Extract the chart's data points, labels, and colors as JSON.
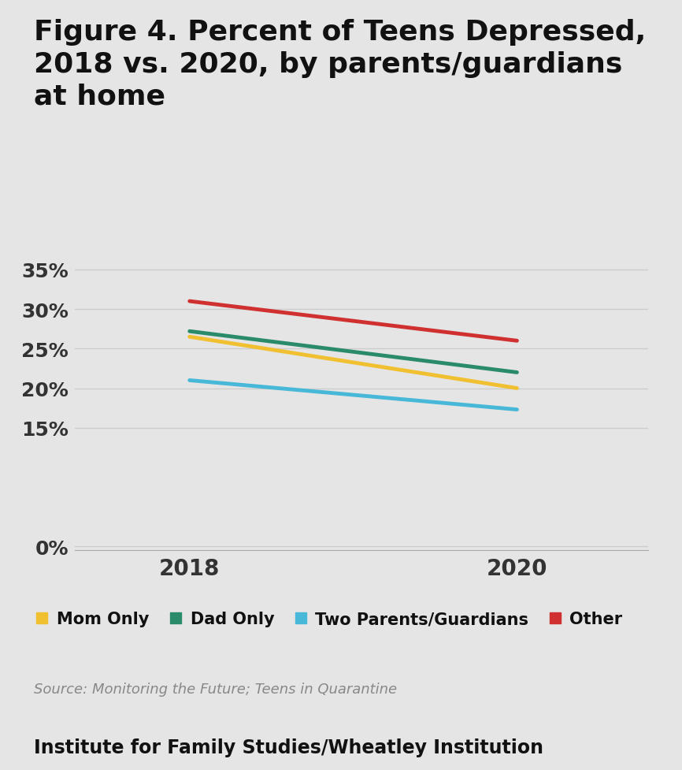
{
  "title": "Figure 4. Percent of Teens Depressed,\n2018 vs. 2020, by parents/guardians\nat home",
  "title_fontsize": 26,
  "title_fontweight": "bold",
  "background_color": "#e5e5e5",
  "years": [
    2018,
    2020
  ],
  "series": [
    {
      "label": "Mom Only",
      "values": [
        0.265,
        0.2
      ],
      "color": "#f0c030",
      "linewidth": 3.5
    },
    {
      "label": "Dad Only",
      "values": [
        0.272,
        0.22
      ],
      "color": "#2a8b6a",
      "linewidth": 3.5
    },
    {
      "label": "Two Parents/Guardians",
      "values": [
        0.21,
        0.173
      ],
      "color": "#48b8d8",
      "linewidth": 3.5
    },
    {
      "label": "Other",
      "values": [
        0.31,
        0.26
      ],
      "color": "#d03030",
      "linewidth": 3.5
    }
  ],
  "yticks": [
    0.0,
    0.15,
    0.2,
    0.25,
    0.3,
    0.35
  ],
  "ytick_labels": [
    "0%",
    "15%",
    "20%",
    "25%",
    "30%",
    "35%"
  ],
  "ylim": [
    -0.005,
    0.375
  ],
  "xlim": [
    2017.3,
    2020.8
  ],
  "xticks": [
    2018,
    2020
  ],
  "source_text": "Source: Monitoring the Future; Teens in Quarantine",
  "footer_text": "Institute for Family Studies/Wheatley Institution",
  "source_fontsize": 13,
  "footer_fontsize": 17,
  "footer_fontweight": "bold",
  "legend_fontsize": 15,
  "tick_fontsize": 18,
  "xtick_fontsize": 20,
  "grid_color": "#cccccc",
  "axis_bottom_color": "#aaaaaa"
}
